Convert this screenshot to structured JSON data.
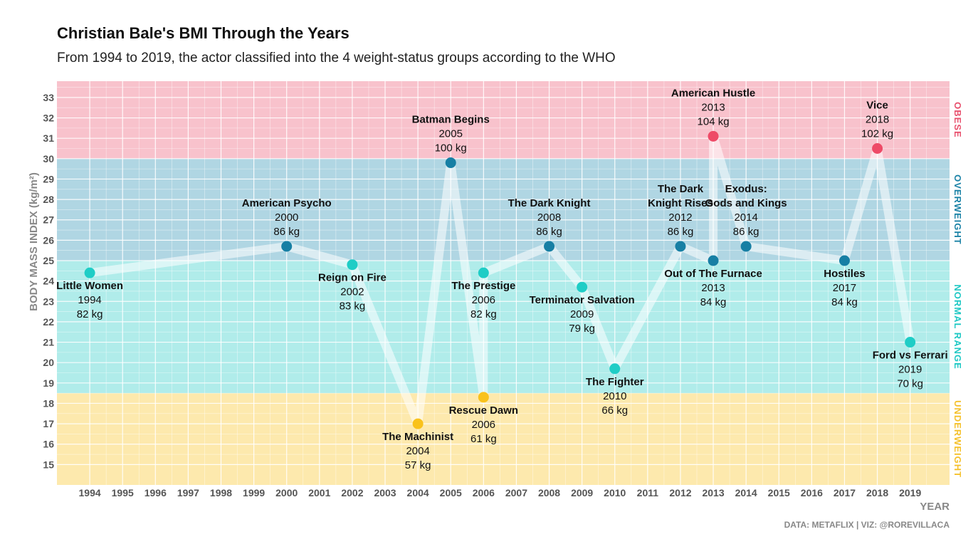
{
  "title": "Christian Bale's BMI Through the Years",
  "subtitle": "From 1994 to 2019, the actor classified into the 4 weight-status groups according to the WHO",
  "caption": "DATA: METAFLIX | VIZ: @ROREVILLACA",
  "chart_data": {
    "type": "line",
    "xlabel": "YEAR",
    "ylabel": "BODY MASS INDEX (kg/m²)",
    "xlim": [
      1993,
      2020.2
    ],
    "ylim": [
      14,
      33.8
    ],
    "x_ticks": [
      1994,
      1995,
      1996,
      1997,
      1998,
      1999,
      2000,
      2001,
      2002,
      2003,
      2004,
      2005,
      2006,
      2007,
      2008,
      2009,
      2010,
      2011,
      2012,
      2013,
      2014,
      2015,
      2016,
      2017,
      2018,
      2019
    ],
    "y_ticks": [
      15,
      16,
      17,
      18,
      19,
      20,
      21,
      22,
      23,
      24,
      25,
      26,
      27,
      28,
      29,
      30,
      31,
      32,
      33
    ],
    "grid": true,
    "zones": [
      {
        "name": "UNDERWEIGHT",
        "from": 14,
        "to": 18.5,
        "fill": "#FDE9AD",
        "label_color": "#F5C12B"
      },
      {
        "name": "NORMAL RANGE",
        "from": 18.5,
        "to": 25,
        "fill": "#B0ECEA",
        "label_color": "#1EC8C4"
      },
      {
        "name": "OVERWEIGHT",
        "from": 25,
        "to": 30,
        "fill": "#B0D6E3",
        "label_color": "#1A82A6"
      },
      {
        "name": "OBESE",
        "from": 30,
        "to": 33.8,
        "fill": "#F8C2CC",
        "label_color": "#E8506D"
      }
    ],
    "colors": {
      "UNDERWEIGHT": "#F9C21B",
      "NORMAL RANGE": "#1FCDC6",
      "OVERWEIGHT": "#177FA4",
      "OBESE": "#EE4A67"
    },
    "points": [
      {
        "x": 1994.0,
        "y": 24.4,
        "group": "NORMAL RANGE",
        "title": "Little Women",
        "year": "1994",
        "weight": "82 kg",
        "label_pos": "below"
      },
      {
        "x": 2000.0,
        "y": 25.7,
        "group": "OVERWEIGHT",
        "title": "American Psycho",
        "year": "2000",
        "weight": "86 kg",
        "label_pos": "above"
      },
      {
        "x": 2002.0,
        "y": 24.8,
        "group": "NORMAL RANGE",
        "title": "Reign on Fire",
        "year": "2002",
        "weight": "83 kg",
        "label_pos": "below"
      },
      {
        "x": 2004.0,
        "y": 17.0,
        "group": "UNDERWEIGHT",
        "title": "The Machinist",
        "year": "2004",
        "weight": "57 kg",
        "label_pos": "below"
      },
      {
        "x": 2005.0,
        "y": 29.8,
        "group": "OVERWEIGHT",
        "title": "Batman Begins",
        "year": "2005",
        "weight": "100 kg",
        "label_pos": "above"
      },
      {
        "x": 2006.0,
        "y": 24.4,
        "group": "NORMAL RANGE",
        "title": "The Prestige",
        "year": "2006",
        "weight": "82 kg",
        "label_pos": "below"
      },
      {
        "x": 2006.0,
        "y": 18.3,
        "group": "UNDERWEIGHT",
        "title": "Rescue Dawn",
        "year": "2006",
        "weight": "61 kg",
        "label_pos": "below"
      },
      {
        "x": 2008.0,
        "y": 25.7,
        "group": "OVERWEIGHT",
        "title": "The Dark Knight",
        "year": "2008",
        "weight": "86 kg",
        "label_pos": "above"
      },
      {
        "x": 2009.0,
        "y": 23.7,
        "group": "NORMAL RANGE",
        "title": "Terminator Salvation",
        "year": "2009",
        "weight": "79 kg",
        "label_pos": "below"
      },
      {
        "x": 2010.0,
        "y": 19.7,
        "group": "NORMAL RANGE",
        "title": "The Fighter",
        "year": "2010",
        "weight": "66 kg",
        "label_pos": "below"
      },
      {
        "x": 2012.0,
        "y": 25.7,
        "group": "OVERWEIGHT",
        "title": "The Dark|Knight Rises",
        "year": "2012",
        "weight": "86 kg",
        "label_pos": "above"
      },
      {
        "x": 2013.0,
        "y": 31.1,
        "group": "OBESE",
        "title": "American Hustle",
        "year": "2013",
        "weight": "104 kg",
        "label_pos": "above"
      },
      {
        "x": 2013.0,
        "y": 25.0,
        "group": "OVERWEIGHT",
        "title": "Out of The Furnace",
        "year": "2013",
        "weight": "84 kg",
        "label_pos": "below"
      },
      {
        "x": 2014.0,
        "y": 25.7,
        "group": "OVERWEIGHT",
        "title": "Exodus:|Gods and Kings",
        "year": "2014",
        "weight": "86 kg",
        "label_pos": "above"
      },
      {
        "x": 2017.0,
        "y": 25.0,
        "group": "OVERWEIGHT",
        "title": "Hostiles",
        "year": "2017",
        "weight": "84 kg",
        "label_pos": "below"
      },
      {
        "x": 2018.0,
        "y": 30.5,
        "group": "OBESE",
        "title": "Vice",
        "year": "2018",
        "weight": "102 kg",
        "label_pos": "above"
      },
      {
        "x": 2019.0,
        "y": 21.0,
        "group": "NORMAL RANGE",
        "title": "Ford vs Ferrari",
        "year": "2019",
        "weight": "70 kg",
        "label_pos": "below"
      }
    ],
    "path_order": [
      0,
      1,
      2,
      3,
      4,
      6,
      5,
      7,
      8,
      9,
      10,
      12,
      11,
      13,
      14,
      15,
      16
    ]
  }
}
